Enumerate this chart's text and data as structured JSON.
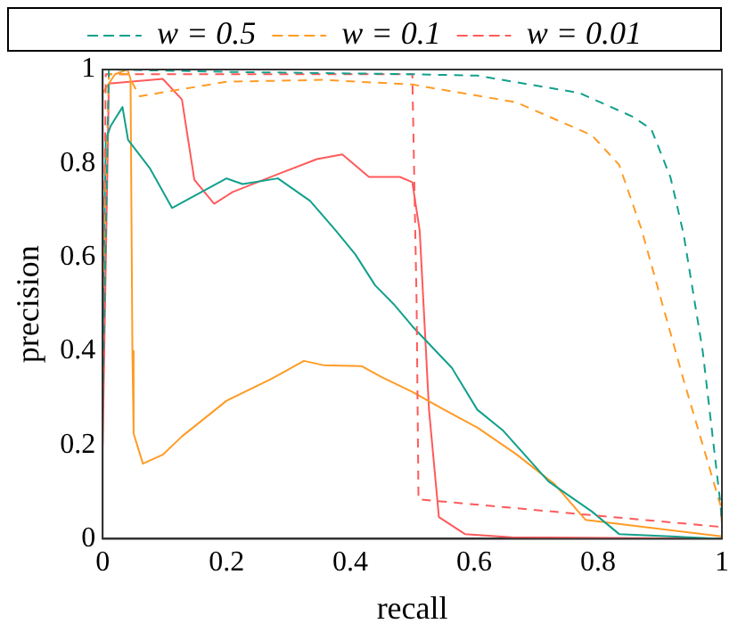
{
  "chart_data": {
    "type": "line",
    "xlabel": "recall",
    "ylabel": "precision",
    "xlim": [
      0,
      1
    ],
    "ylim": [
      0,
      1
    ],
    "xticks": [
      0,
      0.2,
      0.4,
      0.6,
      0.8,
      1
    ],
    "yticks": [
      0,
      0.2,
      0.4,
      0.6,
      0.8,
      1
    ],
    "legend": "top",
    "marker": "none",
    "grid": false,
    "series": [
      {
        "name": "w = 0.5",
        "color": "#12a08c",
        "line_style": "dashed",
        "x": [
          0,
          0.01,
          0.2,
          0.5,
          0.605,
          0.77,
          0.855,
          0.886,
          0.917,
          0.938,
          0.969,
          0.998,
          1
        ],
        "values": [
          0.3,
          1,
          0.995,
          0.99,
          0.987,
          0.95,
          0.9,
          0.873,
          0.77,
          0.65,
          0.4,
          0.07,
          0.03
        ]
      },
      {
        "name": "w = 0.1",
        "color": "#ff9b25",
        "line_style": "dashed",
        "x": [
          0,
          0.01,
          0.04,
          0.06,
          0.2,
          0.356,
          0.5,
          0.668,
          0.79,
          0.834,
          0.87,
          0.938,
          0.998,
          1
        ],
        "values": [
          0.5,
          0.99,
          0.99,
          0.943,
          0.974,
          0.978,
          0.968,
          0.93,
          0.86,
          0.797,
          0.66,
          0.339,
          0.07,
          0.03
        ]
      },
      {
        "name": "w = 0.01",
        "color": "#ff5a5a",
        "line_style": "dashed",
        "x": [
          0,
          0.005,
          0.2,
          0.5,
          0.507,
          0.51,
          1
        ],
        "values": [
          0.3,
          0.99,
          0.99,
          0.99,
          0.5,
          0.084,
          0.025
        ]
      },
      {
        "color": "#12a08c",
        "line_style": "solid",
        "x": [
          0,
          0.005,
          0.013,
          0.032,
          0.041,
          0.076,
          0.112,
          0.2,
          0.226,
          0.283,
          0.335,
          0.377,
          0.408,
          0.44,
          0.47,
          0.5,
          0.564,
          0.605,
          0.647,
          0.72,
          0.79,
          0.834,
          1
        ],
        "values": [
          0.4,
          0.85,
          0.88,
          0.92,
          0.85,
          0.79,
          0.705,
          0.768,
          0.756,
          0.768,
          0.72,
          0.656,
          0.606,
          0.54,
          0.5,
          0.453,
          0.364,
          0.275,
          0.23,
          0.122,
          0.058,
          0.01,
          0
        ]
      },
      {
        "color": "#ff9b25",
        "line_style": "solid",
        "x": [
          0,
          0.02,
          0.04,
          0.045,
          0.048,
          0.05,
          0.065,
          0.097,
          0.128,
          0.2,
          0.273,
          0.325,
          0.356,
          0.418,
          0.45,
          0.5,
          0.543,
          0.605,
          0.668,
          0.73,
          0.78,
          1
        ],
        "values": [
          0.95,
          0.99,
          1,
          0.98,
          0.4,
          0.224,
          0.16,
          0.179,
          0.218,
          0.294,
          0.341,
          0.379,
          0.37,
          0.368,
          0.345,
          0.313,
          0.281,
          0.237,
          0.18,
          0.116,
          0.04,
          0.005
        ]
      },
      {
        "color": "#ff5a5a",
        "line_style": "solid",
        "x": [
          0,
          0.01,
          0.097,
          0.128,
          0.148,
          0.18,
          0.21,
          0.283,
          0.346,
          0.387,
          0.43,
          0.48,
          0.5,
          0.512,
          0.527,
          0.543,
          0.585,
          0.66,
          1
        ],
        "values": [
          0.2,
          0.97,
          0.98,
          0.936,
          0.765,
          0.714,
          0.739,
          0.777,
          0.809,
          0.819,
          0.771,
          0.771,
          0.76,
          0.656,
          0.275,
          0.046,
          0.01,
          0.003,
          0
        ]
      }
    ]
  }
}
